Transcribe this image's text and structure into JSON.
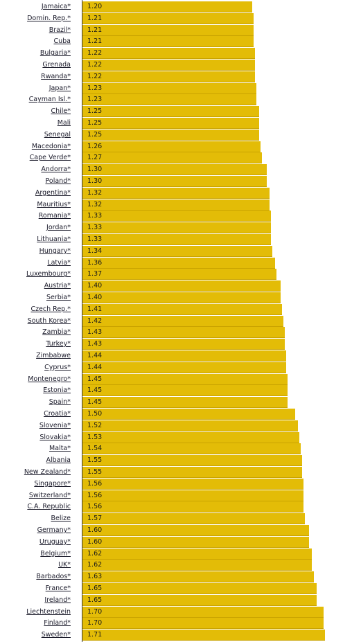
{
  "chart_data": {
    "type": "bar",
    "orientation": "horizontal",
    "bar_color": "#e3bc07",
    "categories": [
      "Jamaica*",
      "Domin. Rep.*",
      "Brazil*",
      "Cuba",
      "Bulgaria*",
      "Grenada",
      "Rwanda*",
      "Japan*",
      "Cayman Isl.*",
      "Chile*",
      "Mali",
      "Senegal",
      "Macedonia*",
      "Cape Verde*",
      "Andorra*",
      "Poland*",
      "Argentina*",
      "Mauritius*",
      "Romania*",
      "Jordan*",
      "Lithuania*",
      "Hungary*",
      "Latvia*",
      "Luxembourg*",
      "Austria*",
      "Serbia*",
      "Czech Rep.*",
      "South Korea*",
      "Zambia*",
      "Turkey*",
      "Zimbabwe",
      "Cyprus*",
      "Montenegro*",
      "Estonia*",
      "Spain*",
      "Croatia*",
      "Slovenia*",
      "Slovakia*",
      "Malta*",
      "Albania",
      "New Zealand*",
      "Singapore*",
      "Switzerland*",
      "C.A. Republic",
      "Belize",
      "Germany*",
      "Uruguay*",
      "Belgium*",
      "UK*",
      "Barbados*",
      "France*",
      "Ireland*",
      "Liechtenstein",
      "Finland*",
      "Sweden*"
    ],
    "values": [
      1.2,
      1.21,
      1.21,
      1.21,
      1.22,
      1.22,
      1.22,
      1.23,
      1.23,
      1.25,
      1.25,
      1.25,
      1.26,
      1.27,
      1.3,
      1.3,
      1.32,
      1.32,
      1.33,
      1.33,
      1.33,
      1.34,
      1.36,
      1.37,
      1.4,
      1.4,
      1.41,
      1.42,
      1.43,
      1.43,
      1.44,
      1.44,
      1.45,
      1.45,
      1.45,
      1.5,
      1.52,
      1.53,
      1.54,
      1.55,
      1.55,
      1.56,
      1.56,
      1.56,
      1.57,
      1.6,
      1.6,
      1.62,
      1.62,
      1.63,
      1.65,
      1.65,
      1.7,
      1.7,
      1.71
    ],
    "value_labels": [
      "1.20",
      "1.21",
      "1.21",
      "1.21",
      "1.22",
      "1.22",
      "1.22",
      "1.23",
      "1.23",
      "1.25",
      "1.25",
      "1.25",
      "1.26",
      "1.27",
      "1.30",
      "1.30",
      "1.32",
      "1.32",
      "1.33",
      "1.33",
      "1.33",
      "1.34",
      "1.36",
      "1.37",
      "1.40",
      "1.40",
      "1.41",
      "1.42",
      "1.43",
      "1.43",
      "1.44",
      "1.44",
      "1.45",
      "1.45",
      "1.45",
      "1.50",
      "1.52",
      "1.53",
      "1.54",
      "1.55",
      "1.55",
      "1.56",
      "1.56",
      "1.56",
      "1.57",
      "1.60",
      "1.60",
      "1.62",
      "1.62",
      "1.63",
      "1.65",
      "1.65",
      "1.70",
      "1.70",
      "1.71"
    ],
    "title": "",
    "xlabel": "",
    "ylabel": ""
  }
}
